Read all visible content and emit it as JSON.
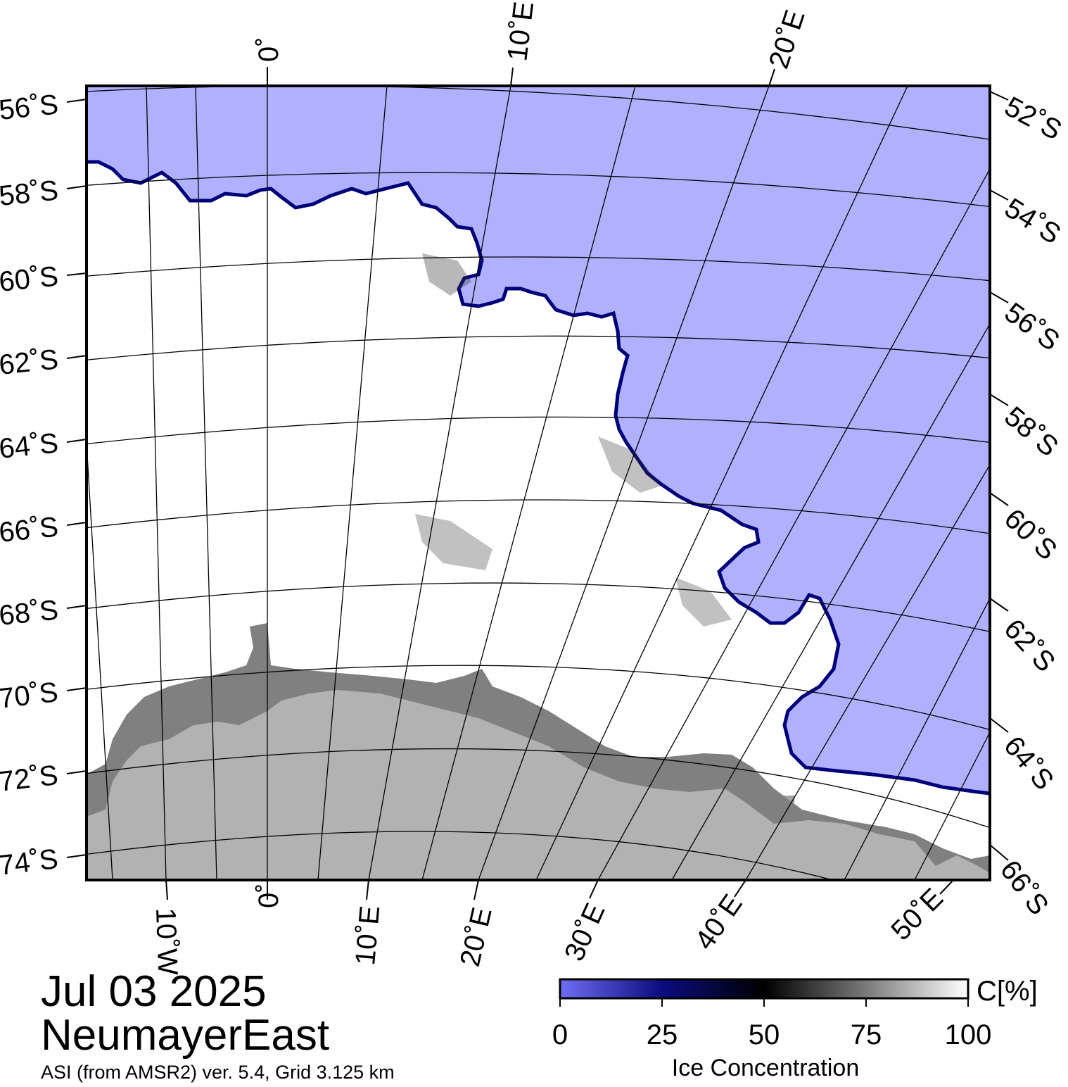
{
  "map": {
    "date": "Jul 03 2025",
    "region": "NeumayerEast",
    "source": "ASI (from AMSR2) ver. 5.4,  Grid 3.125 km",
    "colors": {
      "ocean": "#b0b0ff",
      "ice": "#ffffff",
      "ice_shelf": "#808080",
      "land": "#b2b2b2",
      "ice_edge": "#00007a",
      "grid": "#000000",
      "frame": "#000000"
    },
    "top_ticks": [
      "0˚",
      "10˚E",
      "20˚E"
    ],
    "bottom_ticks": [
      "10˚W",
      "0˚",
      "10˚E",
      "20˚E",
      "30˚E",
      "40˚E",
      "50˚E"
    ],
    "left_ticks": [
      "56˚S",
      "58˚S",
      "60˚S",
      "62˚S",
      "64˚S",
      "66˚S",
      "68˚S",
      "70˚S",
      "72˚S",
      "74˚S"
    ],
    "right_ticks": [
      "52˚S",
      "54˚S",
      "56˚S",
      "58˚S",
      "60˚S",
      "62˚S",
      "64˚S",
      "66˚S"
    ]
  },
  "colorbar": {
    "label": "Ice Concentration",
    "unit": "C[%]",
    "ticks": [
      "0",
      "25",
      "50",
      "75",
      "100"
    ],
    "gradient": [
      "#6e6ef2",
      "#0c0c80",
      "#000000",
      "#7a7a7a",
      "#ffffff"
    ]
  }
}
